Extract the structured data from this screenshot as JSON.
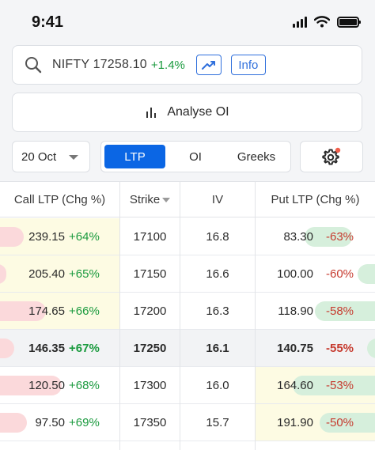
{
  "status_bar": {
    "time": "9:41"
  },
  "search": {
    "symbol": "NIFTY 17258.10",
    "change": "+1.4%",
    "info_label": "Info"
  },
  "analyse": {
    "label": "Analyse OI"
  },
  "controls": {
    "expiry": "20 Oct",
    "tabs": [
      {
        "label": "LTP",
        "active": true
      },
      {
        "label": "OI",
        "active": false
      },
      {
        "label": "Greeks",
        "active": false
      }
    ]
  },
  "table": {
    "headers": {
      "call": "Call LTP (Chg %)",
      "strike": "Strike",
      "iv": "IV",
      "put": "Put LTP (Chg %)"
    },
    "rows": [
      {
        "call_ltp": "239.15",
        "call_chg": "+64%",
        "strike": "17100",
        "iv": "16.8",
        "put_ltp": "83.30",
        "put_chg": "-63%"
      },
      {
        "call_ltp": "205.40",
        "call_chg": "+65%",
        "strike": "17150",
        "iv": "16.6",
        "put_ltp": "100.00",
        "put_chg": "-60%"
      },
      {
        "call_ltp": "174.65",
        "call_chg": "+66%",
        "strike": "17200",
        "iv": "16.3",
        "put_ltp": "118.90",
        "put_chg": "-58%"
      },
      {
        "call_ltp": "146.35",
        "call_chg": "+67%",
        "strike": "17250",
        "iv": "16.1",
        "put_ltp": "140.75",
        "put_chg": "-55%"
      },
      {
        "call_ltp": "120.50",
        "call_chg": "+68%",
        "strike": "17300",
        "iv": "16.0",
        "put_ltp": "164.60",
        "put_chg": "-53%"
      },
      {
        "call_ltp": "97.50",
        "call_chg": "+69%",
        "strike": "17350",
        "iv": "15.7",
        "put_ltp": "191.90",
        "put_chg": "-50%"
      }
    ]
  },
  "colors": {
    "accent": "#0b66e4",
    "positive": "#1a9a3e",
    "negative": "#c63a2e",
    "itm_highlight": "#fdfbe3",
    "call_bar": "#fbd9db",
    "put_bar": "#d6efdc"
  },
  "icons": {
    "search": "search-icon",
    "chart": "line-chart-icon",
    "analyse": "bar-chart-icon",
    "settings": "gear-icon"
  }
}
